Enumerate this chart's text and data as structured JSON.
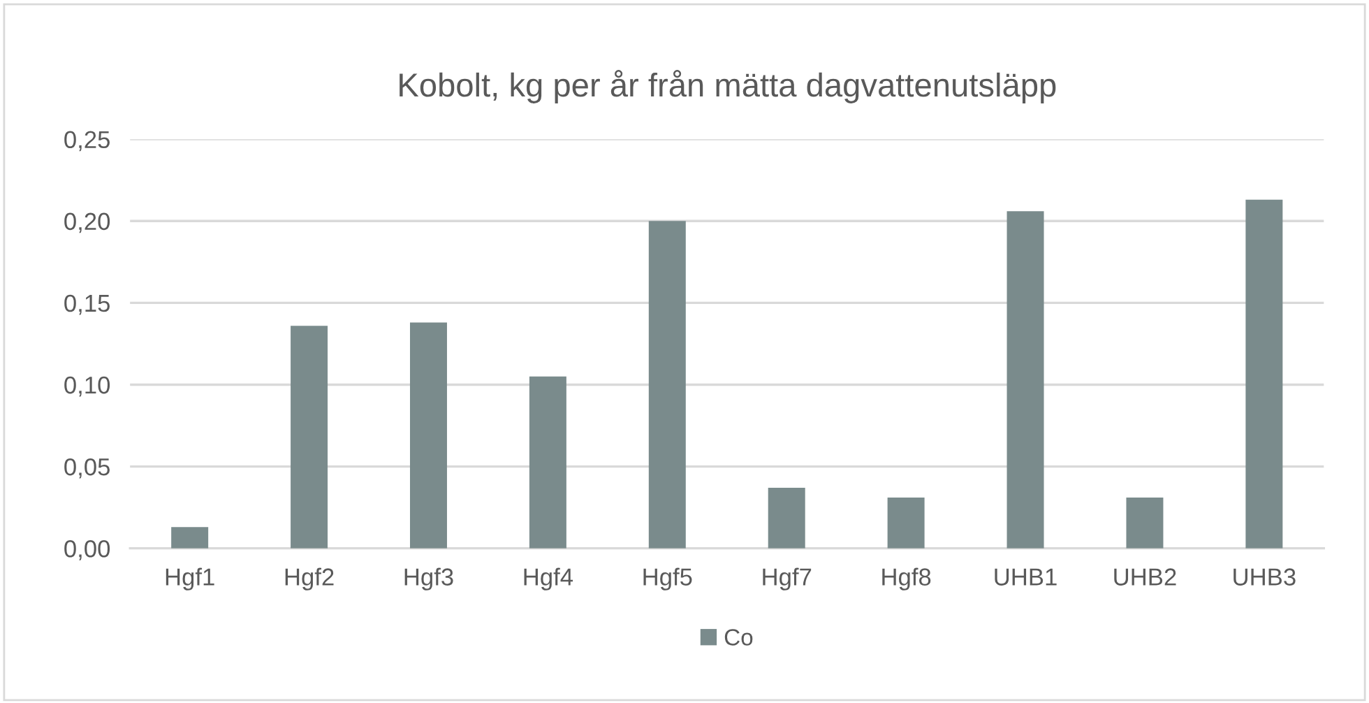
{
  "chart_data": {
    "type": "bar",
    "title": "Kobolt, kg per år från mätta dagvattenutsläpp",
    "categories": [
      "Hgf1",
      "Hgf2",
      "Hgf3",
      "Hgf4",
      "Hgf5",
      "Hgf7",
      "Hgf8",
      "UHB1",
      "UHB2",
      "UHB3"
    ],
    "series": [
      {
        "name": "Co",
        "color": "#7a8b8c",
        "values": [
          0.013,
          0.136,
          0.138,
          0.105,
          0.2,
          0.037,
          0.031,
          0.206,
          0.031,
          0.213
        ]
      }
    ],
    "ylim": [
      0,
      0.25
    ],
    "yticks": [
      {
        "value": 0,
        "label": "0,00"
      },
      {
        "value": 0.05,
        "label": "0,05"
      },
      {
        "value": 0.1,
        "label": "0,10"
      },
      {
        "value": 0.15,
        "label": "0,15"
      },
      {
        "value": 0.2,
        "label": "0,20"
      },
      {
        "value": 0.25,
        "label": "0,25"
      }
    ],
    "grid": "y",
    "legend": "bottom"
  }
}
